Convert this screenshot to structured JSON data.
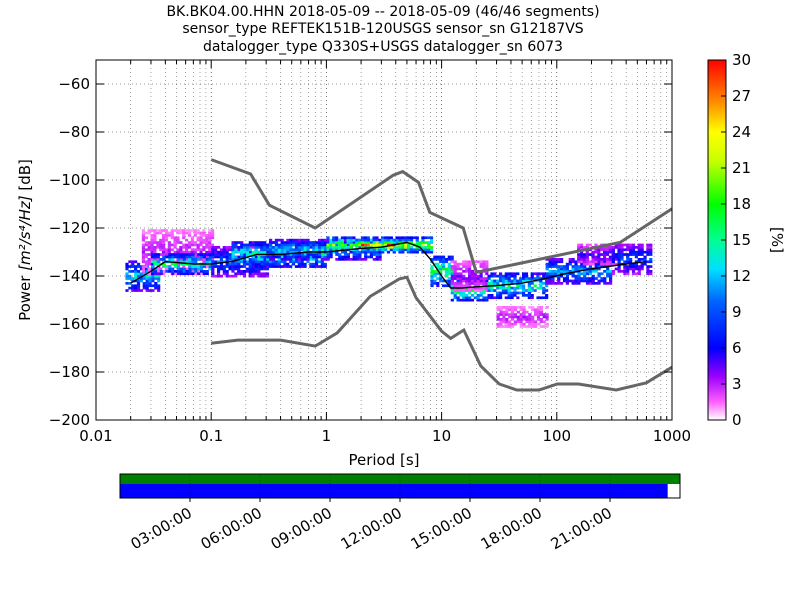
{
  "title_lines": [
    "BK.BK04.00.HHN   2018-05-09 -- 2018-05-09  (46/46 segments)",
    "sensor_type REFTEK151B-120USGS sensor_sn G12187VS",
    "datalogger_type Q330S+USGS datalogger_sn 6073"
  ],
  "chart_data": {
    "type": "heatmap",
    "xlabel": "Period [s]",
    "ylabel_prefix": "Power ",
    "ylabel_math": "[m²/s⁴/Hz]",
    "ylabel_suffix": " [dB]",
    "x_scale": "log",
    "xlim": [
      0.01,
      1000
    ],
    "ylim": [
      -200,
      -50
    ],
    "x_ticks": [
      {
        "value": 0.01,
        "label": "0.01"
      },
      {
        "value": 0.1,
        "label": "0.1"
      },
      {
        "value": 1,
        "label": "1"
      },
      {
        "value": 10,
        "label": "10"
      },
      {
        "value": 100,
        "label": "100"
      },
      {
        "value": 1000,
        "label": "1000"
      }
    ],
    "y_ticks": [
      {
        "value": -60,
        "label": "−60"
      },
      {
        "value": -80,
        "label": "−80"
      },
      {
        "value": -100,
        "label": "−100"
      },
      {
        "value": -120,
        "label": "−120"
      },
      {
        "value": -140,
        "label": "−140"
      },
      {
        "value": -160,
        "label": "−160"
      },
      {
        "value": -180,
        "label": "−180"
      },
      {
        "value": -200,
        "label": "−200"
      }
    ],
    "grid": true,
    "colorbar": {
      "label": "[%]",
      "min": 0,
      "max": 30,
      "ticks": [
        {
          "value": 0,
          "label": "0"
        },
        {
          "value": 3,
          "label": "3"
        },
        {
          "value": 6,
          "label": "6"
        },
        {
          "value": 9,
          "label": "9"
        },
        {
          "value": 12,
          "label": "12"
        },
        {
          "value": 15,
          "label": "15"
        },
        {
          "value": 18,
          "label": "18"
        },
        {
          "value": 21,
          "label": "21"
        },
        {
          "value": 24,
          "label": "24"
        },
        {
          "value": 27,
          "label": "27"
        },
        {
          "value": 30,
          "label": "30"
        }
      ]
    },
    "colors": {
      "noise_model": "#666666",
      "mode_line": "#000000",
      "data_coverage": "#008000",
      "segment_coverage": "#0000ff"
    },
    "high_noise_model": [
      [
        0.1,
        -91.5
      ],
      [
        0.22,
        -97.5
      ],
      [
        0.32,
        -110.5
      ],
      [
        0.8,
        -120
      ],
      [
        3.8,
        -98
      ],
      [
        4.6,
        -96.5
      ],
      [
        6.3,
        -101
      ],
      [
        7.9,
        -113.5
      ],
      [
        15.4,
        -120
      ],
      [
        20,
        -138.5
      ],
      [
        354.8,
        -126
      ],
      [
        1000,
        -112
      ]
    ],
    "low_noise_model": [
      [
        0.1,
        -168
      ],
      [
        0.17,
        -166.7
      ],
      [
        0.4,
        -166.7
      ],
      [
        0.8,
        -169.2
      ],
      [
        1.24,
        -163.7
      ],
      [
        2.4,
        -148.5
      ],
      [
        4.3,
        -141.2
      ],
      [
        5,
        -140.5
      ],
      [
        6,
        -149
      ],
      [
        10,
        -163
      ],
      [
        12,
        -166
      ],
      [
        15.6,
        -162.5
      ],
      [
        21.9,
        -177.5
      ],
      [
        31.6,
        -185
      ],
      [
        45,
        -187.5
      ],
      [
        70,
        -187.5
      ],
      [
        101,
        -185
      ],
      [
        154,
        -185
      ],
      [
        328,
        -187.5
      ],
      [
        600,
        -184.5
      ],
      [
        1000,
        -178
      ]
    ],
    "mode": [
      [
        0.02,
        -143
      ],
      [
        0.03,
        -138
      ],
      [
        0.04,
        -134
      ],
      [
        0.07,
        -135
      ],
      [
        0.1,
        -135
      ],
      [
        0.15,
        -134
      ],
      [
        0.25,
        -131
      ],
      [
        0.4,
        -131
      ],
      [
        0.7,
        -130
      ],
      [
        1,
        -130
      ],
      [
        2,
        -128.5
      ],
      [
        3,
        -128
      ],
      [
        5,
        -126
      ],
      [
        6.5,
        -128
      ],
      [
        8,
        -133
      ],
      [
        10,
        -140
      ],
      [
        12,
        -145
      ],
      [
        15,
        -145
      ],
      [
        20,
        -144.5
      ],
      [
        30,
        -144
      ],
      [
        50,
        -143
      ],
      [
        80,
        -141
      ],
      [
        120,
        -139
      ],
      [
        200,
        -137
      ],
      [
        400,
        -135
      ],
      [
        600,
        -134
      ]
    ],
    "psd_clusters": [
      {
        "period_min": 0.018,
        "period_max": 0.035,
        "db_center": -140,
        "db_halfwidth": 6,
        "level": 12
      },
      {
        "period_min": 0.025,
        "period_max": 0.1,
        "db_center": -130,
        "db_halfwidth": 9,
        "level": 3
      },
      {
        "period_min": 0.03,
        "period_max": 0.1,
        "db_center": -135,
        "db_halfwidth": 4,
        "level": 15
      },
      {
        "period_min": 0.1,
        "period_max": 0.3,
        "db_center": -134,
        "db_halfwidth": 6,
        "level": 9
      },
      {
        "period_min": 0.15,
        "period_max": 1,
        "db_center": -131,
        "db_halfwidth": 5,
        "level": 14
      },
      {
        "period_min": 0.3,
        "period_max": 3,
        "db_center": -129,
        "db_halfwidth": 4,
        "level": 12
      },
      {
        "period_min": 1,
        "period_max": 6,
        "db_center": -127,
        "db_halfwidth": 3,
        "level": 18
      },
      {
        "period_min": 2,
        "period_max": 5,
        "db_center": -127,
        "db_halfwidth": 2,
        "level": 25
      },
      {
        "period_min": 5,
        "period_max": 8,
        "db_center": -127,
        "db_halfwidth": 3,
        "level": 20
      },
      {
        "period_min": 8,
        "period_max": 12,
        "db_center": -138,
        "db_halfwidth": 6,
        "level": 16
      },
      {
        "period_min": 12,
        "period_max": 25,
        "db_center": -146,
        "db_halfwidth": 4,
        "level": 17
      },
      {
        "period_min": 12,
        "period_max": 25,
        "db_center": -140,
        "db_halfwidth": 6,
        "level": 4
      },
      {
        "period_min": 25,
        "period_max": 80,
        "db_center": -144,
        "db_halfwidth": 5,
        "level": 14
      },
      {
        "period_min": 30,
        "period_max": 80,
        "db_center": -157,
        "db_halfwidth": 4,
        "level": 3
      },
      {
        "period_min": 80,
        "period_max": 300,
        "db_center": -138,
        "db_halfwidth": 5,
        "level": 11
      },
      {
        "period_min": 150,
        "period_max": 350,
        "db_center": -131,
        "db_halfwidth": 4,
        "level": 5
      },
      {
        "period_min": 300,
        "period_max": 650,
        "db_center": -133,
        "db_halfwidth": 6,
        "level": 8
      }
    ]
  },
  "coverage": {
    "time_labels": [
      "03:00:00",
      "06:00:00",
      "09:00:00",
      "12:00:00",
      "15:00:00",
      "18:00:00",
      "21:00:00"
    ],
    "data_fraction": 1.0,
    "segment_fraction": 0.978
  }
}
